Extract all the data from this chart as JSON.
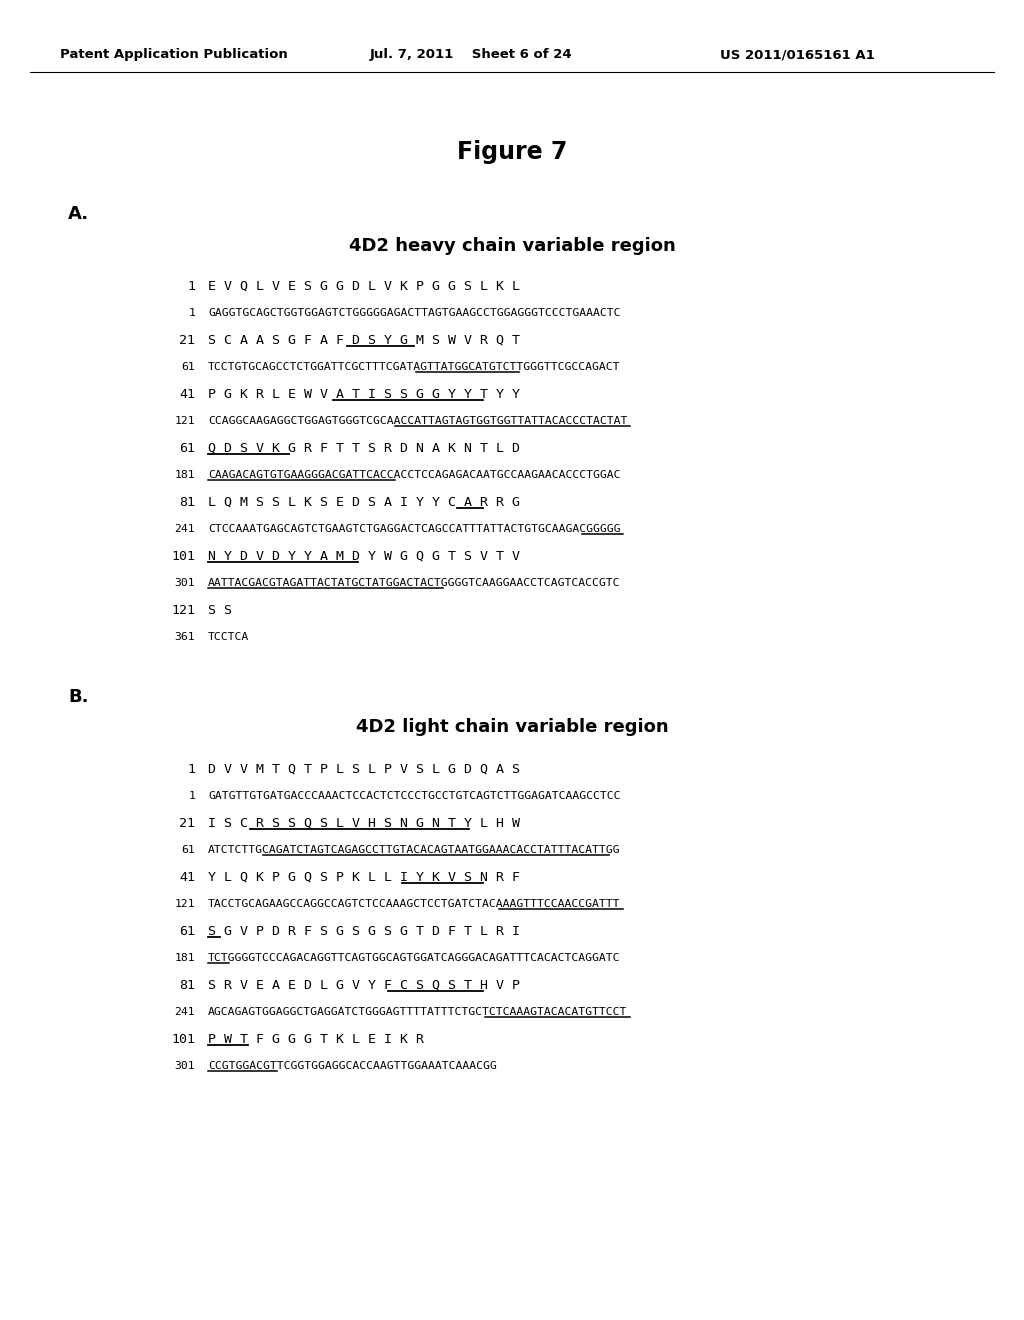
{
  "bg_color": "#ffffff",
  "text_color": "#000000",
  "header_left": "Patent Application Publication",
  "header_mid": "Jul. 7, 2011    Sheet 6 of 24",
  "header_right": "US 2011/0165161 A1",
  "fig_title": "Figure 7",
  "section_a_label": "A.",
  "section_a_title": "4D2 heavy chain variable region",
  "section_b_label": "B.",
  "section_b_title": "4D2 light chain variable region",
  "heavy": [
    {
      "aa_num": "1",
      "aa": "E V Q L V E S G G D L V K P G G S L K L",
      "nt_num": "1",
      "nt": "GAGGTGCAGCTGGTGGAGTCTGGGGGAGACTTAGTGAAGCCTGGAGGGTCCCTGAAACTC",
      "aa_ul": "",
      "nt_ul": ""
    },
    {
      "aa_num": "21",
      "aa": "S C A A S G F A F D S Y G M S W V R Q T",
      "nt_num": "61",
      "nt": "TCCTGTGCAGCCTCTGGATTCGCTTTCGATAGTTATGGCATGTCTTGGGTTCGCCAGACT",
      "aa_ul": "S Y G M S",
      "nt_ul": "AGTTATGGCATGTCT"
    },
    {
      "aa_num": "41",
      "aa": "P G K R L E W V A T I S S G G Y Y T Y Y",
      "nt_num": "121",
      "nt": "CCAGGCAAGAGGCTGGAGTGGGTCGCAACCATTAGTAGTGGTGGTTATTACACCCTACTAT",
      "aa_ul": "T I S S G G Y Y T Y Y",
      "nt_ul": "ACCATTAGTAGTGGTGGTTATTACACCCTACTAT"
    },
    {
      "aa_num": "61",
      "aa": "Q D S V K G R F T T S R D N A K N T L D",
      "nt_num": "181",
      "nt": "CAAGACAGTGTGAAGGGACGATTCACCACCTCCAGAGACAATGCCAAGAACACCCTGGAC",
      "aa_ul": "Q D S V K G",
      "nt_ul": "CAAGACAGTGTGAAGGGACGATTCACC"
    },
    {
      "aa_num": "81",
      "aa": "L Q M S S L K S E D S A I Y Y C A R R G",
      "nt_num": "241",
      "nt": "CTCCAAATGAGCAGTCTGAAGTCTGAGGACTCAGCCATTTATTACTGTGCAAGACGGGGG",
      "aa_ul": "R G",
      "nt_ul": "CGGGGG"
    },
    {
      "aa_num": "101",
      "aa": "N Y D V D Y Y A M D Y W G Q G T S V T V",
      "nt_num": "301",
      "nt": "AATTACGACGTAGATTACTATGCTATGGACTACTGGGGTCAAGGAACCTCAGTCACCGTC",
      "aa_ul": "N Y D V D Y Y A M D Y",
      "nt_ul": "AATTACGACGTAGATTACTATGCTATGGACTACT"
    },
    {
      "aa_num": "121",
      "aa": "S S",
      "nt_num": "361",
      "nt": "TCCTCA",
      "aa_ul": "",
      "nt_ul": ""
    }
  ],
  "light": [
    {
      "aa_num": "1",
      "aa": "D V V M T Q T P L S L P V S L G D Q A S",
      "nt_num": "1",
      "nt": "GATGTTGTGATGACCCAAACTCCACTCTCCCTGCCTGTCAGTCTTGGAGATCAAGCCTCC",
      "aa_ul": "",
      "nt_ul": ""
    },
    {
      "aa_num": "21",
      "aa": "I S C R S S Q S L V H S N G N T Y L H W",
      "nt_num": "61",
      "nt": "ATCTCTTGCAGATCTAGTCAGAGCCTTGTACACAGTAATGGAAACACCTATTTACATTGG",
      "aa_ul": "R S S Q S L V H S N G N T Y L H",
      "nt_ul": "CAGATCTAGTCAGAGCCTTGTACACAGTAATGGAAACACCTATTTACATT"
    },
    {
      "aa_num": "41",
      "aa": "Y L Q K P G Q S P K L L I Y K V S N R F",
      "nt_num": "121",
      "nt": "TACCTGCAGAAGCCAGGCCAGTCTCCAAAGCTCCTGATCTACAAAGTTTCCAACCGATTT",
      "aa_ul": "K V S N R F",
      "nt_ul": "AAAGTTTCCAACCGATTT"
    },
    {
      "aa_num": "61",
      "aa": "S G V P D R F S G S G S G T D F T L R I",
      "nt_num": "181",
      "nt": "TCTGGGGTCCCAGACAGGTTCAGTGGCAGTGGATCAGGGACAGATTTCACACTCAGGATC",
      "aa_ul": "S",
      "nt_ul": "TCT"
    },
    {
      "aa_num": "81",
      "aa": "S R V E A E D L G V Y F C S Q S T H V P",
      "nt_num": "241",
      "nt": "AGCAGAGTGGAGGCTGAGGATCTGGGAGTTTTATTTCTGCTCTCAAAGTACACATGTTCCT",
      "aa_ul": "S Q S T H V P",
      "nt_ul": "TCTCAAAGTACACATGTTCCT"
    },
    {
      "aa_num": "101",
      "aa": "P W T F G G G T K L E I K R",
      "nt_num": "301",
      "nt": "CCGTGGACGTTCGGTGGAGGCACCAAGTTGGAAATCAAACGG",
      "aa_ul": "P W T",
      "nt_ul": "CCGTGGACGT"
    }
  ]
}
